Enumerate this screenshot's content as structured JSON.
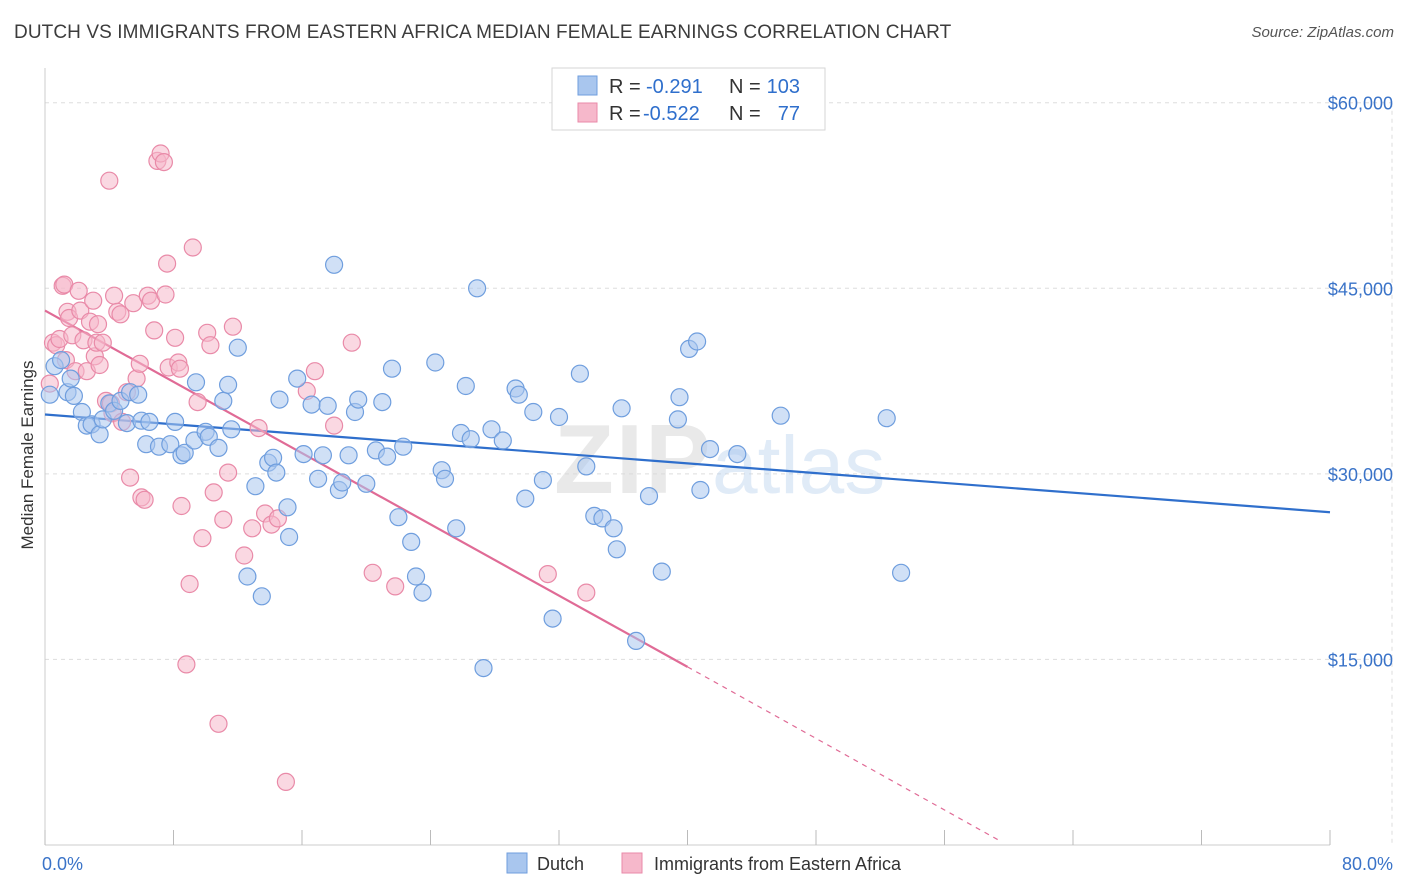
{
  "title": "DUTCH VS IMMIGRANTS FROM EASTERN AFRICA MEDIAN FEMALE EARNINGS CORRELATION CHART",
  "source": "Source: ZipAtlas.com",
  "watermark": {
    "zip": "ZIP",
    "atlas": "atlas"
  },
  "colors": {
    "dutch_fill": "#a9c6ee",
    "dutch_stroke": "#6f9ede",
    "dutch_line": "#2f6fcc",
    "imm_fill": "#f6b8cb",
    "imm_stroke": "#e98aa8",
    "imm_line": "#e06b96",
    "tick_label": "#3a73c8",
    "grid": "#dddddd"
  },
  "legend_top": {
    "rows": [
      {
        "r_label": "R =",
        "r_value": "-0.291",
        "n_label": "N =",
        "n_value": "103"
      },
      {
        "r_label": "R =",
        "r_value": "-0.522",
        "n_label": "N =",
        "n_value": "77"
      }
    ]
  },
  "legend_bottom": [
    "Dutch",
    "Immigrants from Eastern Africa"
  ],
  "chart_data": {
    "type": "scatter",
    "title": "DUTCH VS IMMIGRANTS FROM EASTERN AFRICA MEDIAN FEMALE EARNINGS CORRELATION CHART",
    "xlabel": "",
    "ylabel": "Median Female Earnings",
    "xlim": [
      0,
      80
    ],
    "ylim": [
      0,
      62000
    ],
    "x_tick_labels": [
      "0.0%",
      "80.0%"
    ],
    "y_ticks": [
      15000,
      30000,
      45000,
      60000
    ],
    "y_tick_labels": [
      "$15,000",
      "$30,000",
      "$45,000",
      "$60,000"
    ],
    "grid": true,
    "legend_position": "top-center",
    "series": [
      {
        "name": "Dutch",
        "r": -0.291,
        "n": 103,
        "trend": {
          "x": [
            0,
            80
          ],
          "y": [
            34800,
            26900
          ]
        },
        "points": [
          [
            0.3,
            36400
          ],
          [
            0.6,
            38700
          ],
          [
            1.0,
            39200
          ],
          [
            1.4,
            36600
          ],
          [
            1.6,
            37700
          ],
          [
            1.8,
            36300
          ],
          [
            2.3,
            35000
          ],
          [
            2.6,
            33900
          ],
          [
            2.9,
            34000
          ],
          [
            3.4,
            33200
          ],
          [
            3.6,
            34400
          ],
          [
            4.0,
            35700
          ],
          [
            4.3,
            35100
          ],
          [
            4.7,
            35900
          ],
          [
            5.1,
            34100
          ],
          [
            5.3,
            36600
          ],
          [
            5.8,
            36400
          ],
          [
            6.0,
            34300
          ],
          [
            6.3,
            32400
          ],
          [
            6.5,
            34200
          ],
          [
            7.1,
            32200
          ],
          [
            7.8,
            32400
          ],
          [
            8.1,
            34200
          ],
          [
            8.5,
            31500
          ],
          [
            8.7,
            31700
          ],
          [
            9.3,
            32700
          ],
          [
            9.4,
            37400
          ],
          [
            10.0,
            33400
          ],
          [
            10.2,
            33000
          ],
          [
            10.8,
            32100
          ],
          [
            11.1,
            35900
          ],
          [
            11.4,
            37200
          ],
          [
            11.6,
            33600
          ],
          [
            12.0,
            40200
          ],
          [
            12.6,
            21700
          ],
          [
            13.1,
            29000
          ],
          [
            13.5,
            20100
          ],
          [
            13.9,
            30900
          ],
          [
            14.2,
            31300
          ],
          [
            14.4,
            30100
          ],
          [
            14.6,
            36000
          ],
          [
            15.1,
            27300
          ],
          [
            15.2,
            24900
          ],
          [
            15.7,
            37700
          ],
          [
            16.1,
            31600
          ],
          [
            16.6,
            35600
          ],
          [
            17.0,
            29600
          ],
          [
            17.3,
            31500
          ],
          [
            17.6,
            35500
          ],
          [
            18.0,
            46900
          ],
          [
            18.3,
            28700
          ],
          [
            18.5,
            29300
          ],
          [
            18.9,
            31500
          ],
          [
            19.3,
            35000
          ],
          [
            19.5,
            36000
          ],
          [
            20.0,
            29200
          ],
          [
            20.6,
            31900
          ],
          [
            21.0,
            35800
          ],
          [
            21.3,
            31400
          ],
          [
            21.6,
            38500
          ],
          [
            22.0,
            26500
          ],
          [
            22.3,
            32200
          ],
          [
            22.8,
            24500
          ],
          [
            23.1,
            21700
          ],
          [
            23.5,
            20400
          ],
          [
            24.3,
            39000
          ],
          [
            24.7,
            30300
          ],
          [
            24.9,
            29600
          ],
          [
            25.6,
            25600
          ],
          [
            25.9,
            33300
          ],
          [
            26.2,
            37100
          ],
          [
            26.5,
            32800
          ],
          [
            26.9,
            45000
          ],
          [
            27.3,
            14300
          ],
          [
            27.8,
            33600
          ],
          [
            28.5,
            32700
          ],
          [
            29.3,
            36900
          ],
          [
            29.5,
            36400
          ],
          [
            29.9,
            28000
          ],
          [
            30.4,
            35000
          ],
          [
            31.0,
            29500
          ],
          [
            31.6,
            18300
          ],
          [
            32.0,
            34600
          ],
          [
            33.3,
            38100
          ],
          [
            33.7,
            30600
          ],
          [
            34.2,
            26600
          ],
          [
            34.7,
            26400
          ],
          [
            35.4,
            25600
          ],
          [
            35.6,
            23900
          ],
          [
            35.9,
            35300
          ],
          [
            36.8,
            16500
          ],
          [
            37.6,
            28200
          ],
          [
            38.4,
            22100
          ],
          [
            39.4,
            34400
          ],
          [
            39.5,
            36200
          ],
          [
            40.1,
            40100
          ],
          [
            40.6,
            40700
          ],
          [
            40.8,
            28700
          ],
          [
            41.4,
            32000
          ],
          [
            43.1,
            31600
          ],
          [
            45.8,
            34700
          ],
          [
            52.4,
            34500
          ],
          [
            53.3,
            22000
          ]
        ]
      },
      {
        "name": "Immigrants from Eastern Africa",
        "r": -0.522,
        "n": 77,
        "trend": {
          "x": [
            0,
            40
          ],
          "y": [
            43200,
            14400
          ]
        },
        "trend_dashed": {
          "x": [
            40,
            59.5
          ],
          "y": [
            14400,
            300
          ]
        },
        "points": [
          [
            0.3,
            37300
          ],
          [
            0.5,
            40600
          ],
          [
            0.7,
            40400
          ],
          [
            0.9,
            40900
          ],
          [
            1.1,
            45200
          ],
          [
            1.2,
            45300
          ],
          [
            1.3,
            39200
          ],
          [
            1.4,
            43100
          ],
          [
            1.5,
            42600
          ],
          [
            1.7,
            41200
          ],
          [
            1.9,
            38300
          ],
          [
            2.1,
            44800
          ],
          [
            2.2,
            43200
          ],
          [
            2.4,
            40800
          ],
          [
            2.6,
            38300
          ],
          [
            2.8,
            42300
          ],
          [
            3.0,
            44000
          ],
          [
            3.1,
            39500
          ],
          [
            3.2,
            40600
          ],
          [
            3.3,
            42100
          ],
          [
            3.4,
            38800
          ],
          [
            3.6,
            40600
          ],
          [
            3.8,
            35900
          ],
          [
            4.0,
            53700
          ],
          [
            4.1,
            35700
          ],
          [
            4.2,
            34900
          ],
          [
            4.3,
            44400
          ],
          [
            4.5,
            43100
          ],
          [
            4.7,
            42900
          ],
          [
            4.8,
            34200
          ],
          [
            5.1,
            36600
          ],
          [
            5.3,
            29700
          ],
          [
            5.5,
            43800
          ],
          [
            5.7,
            37700
          ],
          [
            5.9,
            38900
          ],
          [
            6.0,
            28100
          ],
          [
            6.2,
            27900
          ],
          [
            6.4,
            44400
          ],
          [
            6.6,
            44000
          ],
          [
            6.8,
            41600
          ],
          [
            7.0,
            55300
          ],
          [
            7.2,
            55900
          ],
          [
            7.4,
            55200
          ],
          [
            7.5,
            44500
          ],
          [
            7.6,
            47000
          ],
          [
            7.7,
            38600
          ],
          [
            8.1,
            41000
          ],
          [
            8.3,
            39000
          ],
          [
            8.4,
            38500
          ],
          [
            8.5,
            27400
          ],
          [
            8.8,
            14600
          ],
          [
            9.0,
            21100
          ],
          [
            9.2,
            48300
          ],
          [
            9.5,
            35800
          ],
          [
            9.8,
            24800
          ],
          [
            10.1,
            41400
          ],
          [
            10.3,
            40400
          ],
          [
            10.5,
            28500
          ],
          [
            10.8,
            9800
          ],
          [
            11.1,
            26300
          ],
          [
            11.4,
            30100
          ],
          [
            11.7,
            41900
          ],
          [
            12.4,
            23400
          ],
          [
            12.9,
            25600
          ],
          [
            13.3,
            33700
          ],
          [
            13.7,
            26800
          ],
          [
            14.1,
            25900
          ],
          [
            14.5,
            26400
          ],
          [
            15.0,
            5100
          ],
          [
            16.3,
            36700
          ],
          [
            16.8,
            38300
          ],
          [
            18.0,
            33900
          ],
          [
            19.1,
            40600
          ],
          [
            20.4,
            22000
          ],
          [
            21.8,
            20900
          ],
          [
            31.3,
            21900
          ],
          [
            33.7,
            20400
          ]
        ]
      }
    ]
  }
}
